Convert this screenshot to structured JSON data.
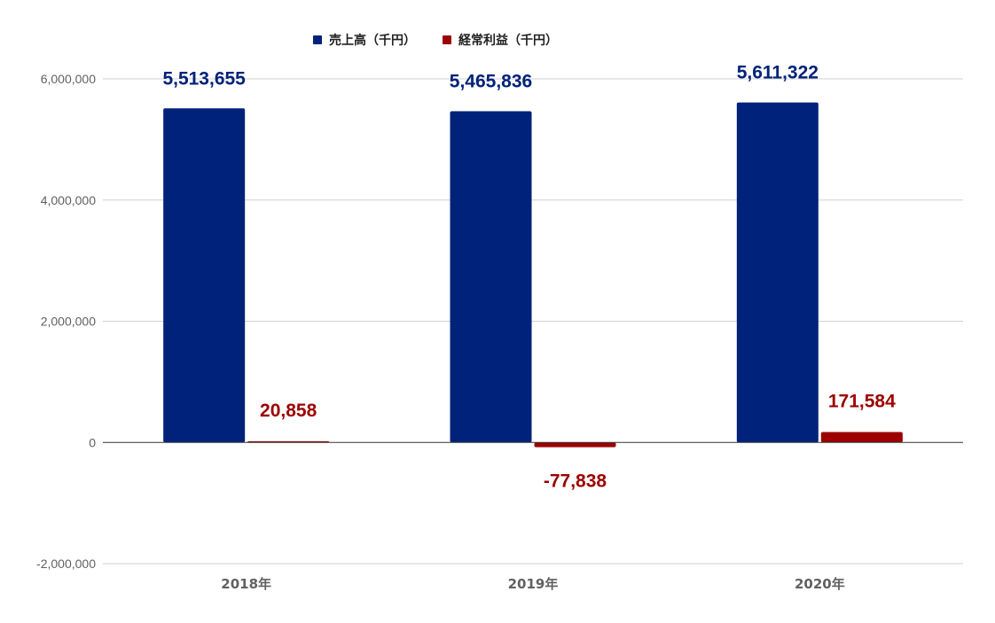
{
  "chart_data": {
    "type": "bar",
    "categories": [
      "2018年",
      "2019年",
      "2020年"
    ],
    "series": [
      {
        "name": "売上高（千円）",
        "color": "#00227a",
        "values": [
          5513655,
          5465836,
          5611322
        ],
        "labels": [
          "5,513,655",
          "5,465,836",
          "5,611,322"
        ]
      },
      {
        "name": "経常利益（千円）",
        "color": "#9c0000",
        "values": [
          20858,
          -77838,
          171584
        ],
        "labels": [
          "20,858",
          "-77,838",
          "171,584"
        ]
      }
    ],
    "ylim": [
      -2000000,
      6000000
    ],
    "yticks": [
      6000000,
      4000000,
      2000000,
      0,
      -2000000
    ],
    "ytick_labels": [
      "6,000,000",
      "4,000,000",
      "2,000,000",
      "0",
      "-2,000,000"
    ],
    "grid": true,
    "legend_position": "top",
    "title": "",
    "xlabel": "",
    "ylabel": ""
  }
}
